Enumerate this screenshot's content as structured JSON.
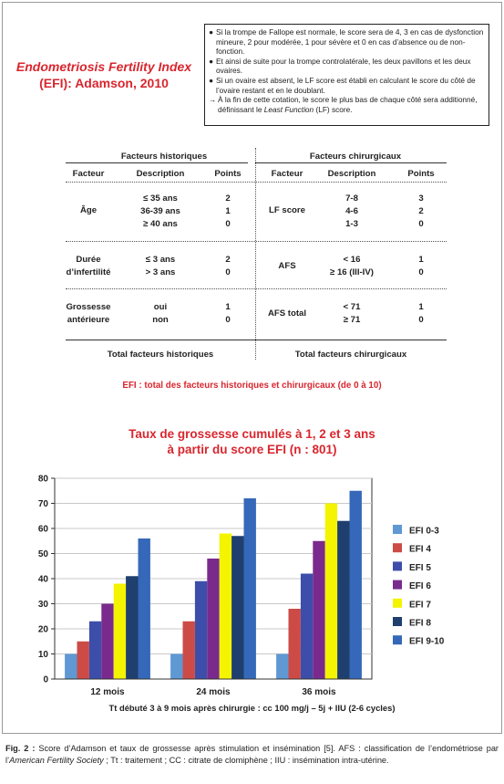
{
  "efi_title": {
    "line1": "Endometriosis Fertility Index",
    "line2": "(EFI): Adamson, 2010"
  },
  "notes": [
    {
      "marker": "●",
      "text": "Si la trompe de Fallope est normale, le score sera de 4, 3 en cas de dysfonction mineure, 2 pour modérée, 1 pour sévère et 0 en cas d’absence ou de non-fonction."
    },
    {
      "marker": "●",
      "text": "Et ainsi de suite pour la trompe controlatérale, les deux pavillons et les deux ovaires."
    },
    {
      "marker": "●",
      "text": "Si un ovaire est absent, le LF score est établi en calculant le score du côté de l’ovaire restant et en le doublant."
    },
    {
      "marker": "→",
      "text_before": "À la fin de cette cotation, le score le plus bas de chaque côté sera additionné, définissant le ",
      "text_italic": "Least Function",
      "text_after": " (LF) score."
    }
  ],
  "table": {
    "hist_header": "Facteurs historiques",
    "surg_header": "Facteurs chirurgicaux",
    "col_factor": "Facteur",
    "col_desc": "Description",
    "col_points": "Points",
    "hist_rows": [
      {
        "factor": [
          "Âge"
        ],
        "desc": [
          "≤ 35 ans",
          "36-39 ans",
          "≥ 40 ans"
        ],
        "points": [
          "2",
          "1",
          "0"
        ]
      },
      {
        "factor": [
          "Durée",
          "d’infertilité"
        ],
        "desc": [
          "≤ 3 ans",
          "> 3 ans"
        ],
        "points": [
          "2",
          "0"
        ]
      },
      {
        "factor": [
          "Grossesse",
          "antérieure"
        ],
        "desc": [
          "oui",
          "non"
        ],
        "points": [
          "1",
          "0"
        ]
      }
    ],
    "surg_rows": [
      {
        "factor": [
          "LF score"
        ],
        "desc": [
          "7-8",
          "4-6",
          "1-3"
        ],
        "points": [
          "3",
          "2",
          "0"
        ]
      },
      {
        "factor": [
          "AFS"
        ],
        "desc": [
          "< 16",
          "≥ 16 (III-IV)"
        ],
        "points": [
          "1",
          "0"
        ]
      },
      {
        "factor": [
          "AFS total"
        ],
        "desc": [
          "< 71",
          "≥ 71"
        ],
        "points": [
          "1",
          "0"
        ]
      }
    ],
    "hist_total": "Total facteurs historiques",
    "surg_total": "Total facteurs chirurgicaux"
  },
  "efi_total": "EFI : total des facteurs historiques et chirurgicaux (de 0 à 10)",
  "chart_data": {
    "type": "bar",
    "title": [
      "Taux de grossesse cumulés à 1, 2 et 3 ans",
      "à partir du score EFI (n : 801)"
    ],
    "categories": [
      "12 mois",
      "24 mois",
      "36 mois"
    ],
    "ylim": [
      0,
      80
    ],
    "yticks": [
      0,
      10,
      20,
      30,
      40,
      50,
      60,
      70,
      80
    ],
    "grid": true,
    "legend_position": "right",
    "series": [
      {
        "name": "EFI 0-3",
        "color": "#5f98d3",
        "values": [
          10,
          10,
          10
        ]
      },
      {
        "name": "EFI 4",
        "color": "#cc4b47",
        "values": [
          15,
          23,
          28
        ]
      },
      {
        "name": "EFI 5",
        "color": "#3d4eaa",
        "values": [
          23,
          39,
          42
        ]
      },
      {
        "name": "EFI 6",
        "color": "#7a2a8c",
        "values": [
          30,
          48,
          55
        ]
      },
      {
        "name": "EFI 7",
        "color": "#f4f400",
        "values": [
          38,
          58,
          70
        ]
      },
      {
        "name": "EFI 8",
        "color": "#1f3f6e",
        "values": [
          41,
          57,
          63
        ]
      },
      {
        "name": "EFI 9-10",
        "color": "#3568b8",
        "values": [
          56,
          72,
          75
        ]
      }
    ]
  },
  "chart_note": "Tt débuté 3 à 9 mois après chirurgie : cc 100 mg/j – 5j + IIU (2-6 cycles)",
  "caption": {
    "label": "Fig. 2 :",
    "p1": " Score d’Adamson et taux de grossesse après stimulation et insémination [5]. AFS : classification de l’endométriose par l’",
    "italic": "American Fertility Society",
    "p2": " ; Tt : traitement ; CC : citrate de clomiphène ; IIU : insémination intra-utérine."
  }
}
